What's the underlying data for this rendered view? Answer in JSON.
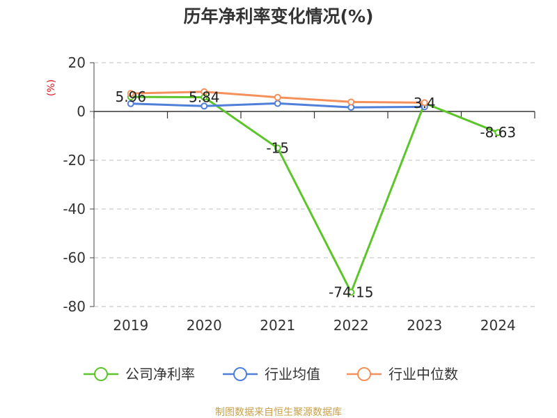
{
  "chart_data": {
    "type": "line",
    "title": "历年净利率变化情况(%)",
    "ylabel": "(%)",
    "xlabel": "",
    "categories": [
      "2019",
      "2020",
      "2021",
      "2022",
      "2023",
      "2024"
    ],
    "ylim": [
      -80,
      20
    ],
    "yticks": [
      20,
      0,
      -20,
      -40,
      -60,
      -80
    ],
    "grid": true,
    "legend_position": "bottom",
    "series": [
      {
        "name": "公司净利率",
        "color": "#5cc52a",
        "values": [
          5.96,
          5.84,
          -15,
          -74.15,
          3.4,
          -8.63
        ],
        "labels": [
          "5.96",
          "5.84",
          "-15",
          "-74.15",
          "3.4",
          "-8.63"
        ]
      },
      {
        "name": "行业均值",
        "color": "#4f7fd9",
        "values": [
          3.2,
          2.2,
          3.3,
          1.7,
          1.9,
          null
        ]
      },
      {
        "name": "行业中位数",
        "color": "#f5905a",
        "values": [
          7.4,
          8.1,
          5.8,
          3.9,
          3.6,
          null
        ]
      }
    ],
    "source": "制图数据来自恒生聚源数据库"
  }
}
